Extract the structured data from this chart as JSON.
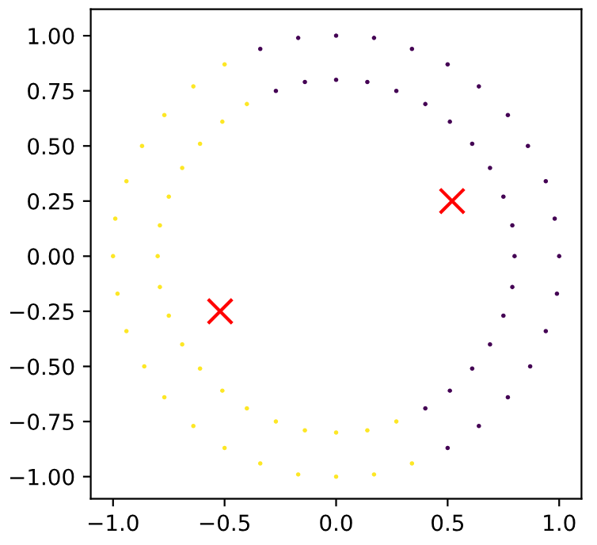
{
  "chart_data": {
    "type": "scatter",
    "xlim": [
      -1.1,
      1.1
    ],
    "ylim": [
      -1.1,
      1.12
    ],
    "xticks": [
      {
        "value": -1.0,
        "label": "−1.0"
      },
      {
        "value": -0.5,
        "label": "−0.5"
      },
      {
        "value": 0.0,
        "label": "0.0"
      },
      {
        "value": 0.5,
        "label": "0.5"
      },
      {
        "value": 1.0,
        "label": "1.0"
      }
    ],
    "yticks": [
      {
        "value": -1.0,
        "label": "−1.00"
      },
      {
        "value": -0.75,
        "label": "−0.75"
      },
      {
        "value": -0.5,
        "label": "−0.50"
      },
      {
        "value": -0.25,
        "label": "−0.25"
      },
      {
        "value": 0.0,
        "label": "0.00"
      },
      {
        "value": 0.25,
        "label": "0.25"
      },
      {
        "value": 0.5,
        "label": "0.50"
      },
      {
        "value": 0.75,
        "label": "0.75"
      },
      {
        "value": 1.0,
        "label": "1.00"
      }
    ],
    "grid": false,
    "legend": false,
    "series": [
      {
        "color": "#440154",
        "marker": "circle",
        "x": [
          0.5,
          0.64,
          0.77,
          0.87,
          0.94,
          0.99,
          1.0,
          0.98,
          0.94,
          0.86,
          0.77,
          0.64,
          0.5,
          0.34,
          0.17,
          0.0,
          -0.17,
          -0.34,
          0.4,
          0.51,
          0.61,
          0.69,
          0.75,
          0.79,
          0.8,
          0.79,
          0.75,
          0.69,
          0.61,
          0.51,
          0.4,
          0.27,
          0.14,
          0.0,
          -0.14,
          -0.27
        ],
        "values": [
          -0.87,
          -0.77,
          -0.64,
          -0.5,
          -0.34,
          -0.17,
          0.0,
          0.17,
          0.34,
          0.5,
          0.64,
          0.77,
          0.87,
          0.94,
          0.99,
          1.0,
          0.99,
          0.94,
          -0.69,
          -0.61,
          -0.51,
          -0.4,
          -0.27,
          -0.14,
          0.0,
          0.14,
          0.27,
          0.4,
          0.51,
          0.61,
          0.69,
          0.75,
          0.79,
          0.8,
          0.79,
          0.75
        ]
      },
      {
        "color": "#fde725",
        "marker": "circle",
        "x": [
          -0.5,
          -0.64,
          -0.77,
          -0.87,
          -0.94,
          -0.99,
          -1.0,
          -0.98,
          -0.94,
          -0.86,
          -0.77,
          -0.64,
          -0.5,
          -0.34,
          -0.17,
          0.0,
          0.17,
          0.34,
          -0.4,
          -0.51,
          -0.61,
          -0.69,
          -0.75,
          -0.79,
          -0.8,
          -0.79,
          -0.75,
          -0.69,
          -0.61,
          -0.51,
          -0.4,
          -0.27,
          -0.14,
          0.0,
          0.14,
          0.27
        ],
        "values": [
          0.87,
          0.77,
          0.64,
          0.5,
          0.34,
          0.17,
          0.0,
          -0.17,
          -0.34,
          -0.5,
          -0.64,
          -0.77,
          -0.87,
          -0.94,
          -0.99,
          -1.0,
          -0.99,
          -0.94,
          0.69,
          0.61,
          0.51,
          0.4,
          0.27,
          0.14,
          0.0,
          -0.14,
          -0.27,
          -0.4,
          -0.51,
          -0.61,
          -0.69,
          -0.75,
          -0.79,
          -0.8,
          -0.79,
          -0.75
        ]
      },
      {
        "color": "#ff0000",
        "marker": "cross",
        "x": [
          0.52,
          -0.52
        ],
        "values": [
          0.25,
          -0.25
        ]
      }
    ]
  }
}
